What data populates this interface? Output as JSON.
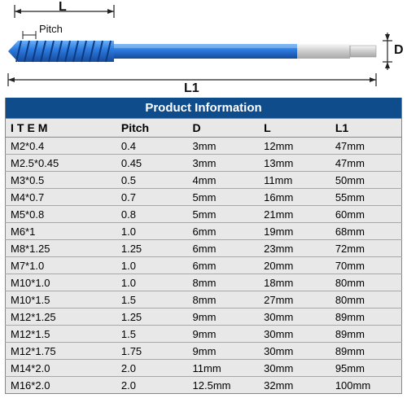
{
  "diagram": {
    "labels": {
      "L": "L",
      "L1": "L1",
      "D": "D",
      "Pitch": "Pitch"
    },
    "colors": {
      "tap_body": "#2d7ce0",
      "tap_highlight": "#5a9ff0",
      "tap_thread_dark": "#1a4c9e",
      "shank": "#d8d8d8",
      "shank_highlight": "#f0f0f0",
      "arrow": "#222222"
    }
  },
  "table": {
    "title": "Product Information",
    "title_bg": "#0e4c8b",
    "title_color": "#ffffff",
    "row_bg": "#e8e8e8",
    "border_color": "#888888",
    "columns": [
      "ITEM",
      "Pitch",
      "D",
      "L",
      "L1"
    ],
    "rows": [
      [
        "M2*0.4",
        "0.4",
        "3mm",
        "12mm",
        "47mm"
      ],
      [
        "M2.5*0.45",
        "0.45",
        "3mm",
        "13mm",
        "47mm"
      ],
      [
        "M3*0.5",
        "0.5",
        "4mm",
        "11mm",
        "50mm"
      ],
      [
        "M4*0.7",
        "0.7",
        "5mm",
        "16mm",
        "55mm"
      ],
      [
        "M5*0.8",
        "0.8",
        "5mm",
        "21mm",
        "60mm"
      ],
      [
        "M6*1",
        "1.0",
        "6mm",
        "19mm",
        "68mm"
      ],
      [
        "M8*1.25",
        "1.25",
        "6mm",
        "23mm",
        "72mm"
      ],
      [
        "M7*1.0",
        "1.0",
        "6mm",
        "20mm",
        "70mm"
      ],
      [
        "M10*1.0",
        "1.0",
        "8mm",
        "18mm",
        "80mm"
      ],
      [
        "M10*1.5",
        "1.5",
        "8mm",
        "27mm",
        "80mm"
      ],
      [
        "M12*1.25",
        "1.25",
        "9mm",
        "30mm",
        "89mm"
      ],
      [
        "M12*1.5",
        "1.5",
        "9mm",
        "30mm",
        "89mm"
      ],
      [
        "M12*1.75",
        "1.75",
        "9mm",
        "30mm",
        "89mm"
      ],
      [
        "M14*2.0",
        "2.0",
        "11mm",
        "30mm",
        "95mm"
      ],
      [
        "M16*2.0",
        "2.0",
        "12.5mm",
        "32mm",
        "100mm"
      ]
    ]
  }
}
